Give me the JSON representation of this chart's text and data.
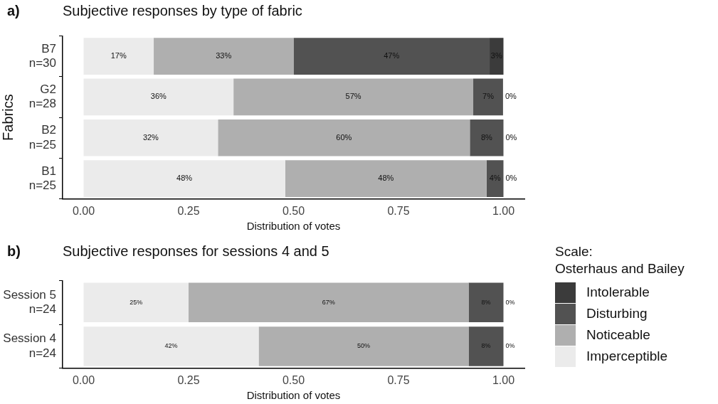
{
  "chart_data": [
    {
      "type": "bar",
      "orientation": "horizontal",
      "stacked": true,
      "title": "Subjective responses by type of fabric",
      "annotations": [
        "a)"
      ],
      "xlabel": "Distribution of votes",
      "ylabel": "Fabrics",
      "categories": [
        "B7\nn=30",
        "G2\nn=28",
        "B2\nn=25",
        "B1\nn=25"
      ],
      "xlim": [
        -0.05,
        1.05
      ],
      "xticks": [
        {
          "value": 0,
          "label": "0.00"
        },
        {
          "value": 0.25,
          "label": "0.25"
        },
        {
          "value": 0.5,
          "label": "0.50"
        },
        {
          "value": 0.75,
          "label": "0.75"
        },
        {
          "value": 1,
          "label": "1.00"
        }
      ],
      "grid": false,
      "legend": false,
      "series": [
        {
          "color": "#ebebeb",
          "values": [
            0.167,
            0.357,
            0.32,
            0.48
          ],
          "value_labels": [
            "17%",
            "36%",
            "32%",
            "48%"
          ]
        },
        {
          "color": "#afafaf",
          "values": [
            0.333,
            0.571,
            0.6,
            0.48
          ],
          "value_labels": [
            "33%",
            "57%",
            "60%",
            "48%"
          ]
        },
        {
          "color": "#525252",
          "values": [
            0.467,
            0.071,
            0.08,
            0.04
          ],
          "value_labels": [
            "47%",
            "7%",
            "8%",
            "4%"
          ]
        },
        {
          "color": "#3b3b3b",
          "values": [
            0.033,
            0,
            0,
            0
          ],
          "value_labels": [
            "3%",
            "0%",
            "0%",
            "0%"
          ]
        }
      ]
    },
    {
      "type": "bar",
      "orientation": "horizontal",
      "stacked": true,
      "title": "Subjective responses for sessions 4 and 5",
      "annotations": [
        "b)"
      ],
      "xlabel": "Distribution of votes",
      "legend_title": "Scale:\nOsterhaus and Bailey",
      "categories": [
        "Session 5\nn=24",
        "Session 4\nn=24"
      ],
      "xlim": [
        -0.05,
        1.05
      ],
      "xticks": [
        {
          "value": 0,
          "label": "0.00"
        },
        {
          "value": 0.25,
          "label": "0.25"
        },
        {
          "value": 0.5,
          "label": "0.50"
        },
        {
          "value": 0.75,
          "label": "0.75"
        },
        {
          "value": 1,
          "label": "1.00"
        }
      ],
      "grid": false,
      "legend": "right",
      "series": [
        {
          "name": "Imperceptible",
          "color": "#ebebeb",
          "values": [
            0.25,
            0.417
          ],
          "value_labels": [
            "25%",
            "42%"
          ]
        },
        {
          "name": "Noticeable",
          "color": "#afafaf",
          "values": [
            0.667,
            0.5
          ],
          "value_labels": [
            "67%",
            "50%"
          ]
        },
        {
          "name": "Disturbing",
          "color": "#525252",
          "values": [
            0.083,
            0.083
          ],
          "value_labels": [
            "8%",
            "8%"
          ]
        },
        {
          "name": "Intolerable",
          "color": "#3b3b3b",
          "values": [
            0,
            0
          ],
          "value_labels": [
            "0%",
            "0%"
          ]
        }
      ]
    }
  ]
}
